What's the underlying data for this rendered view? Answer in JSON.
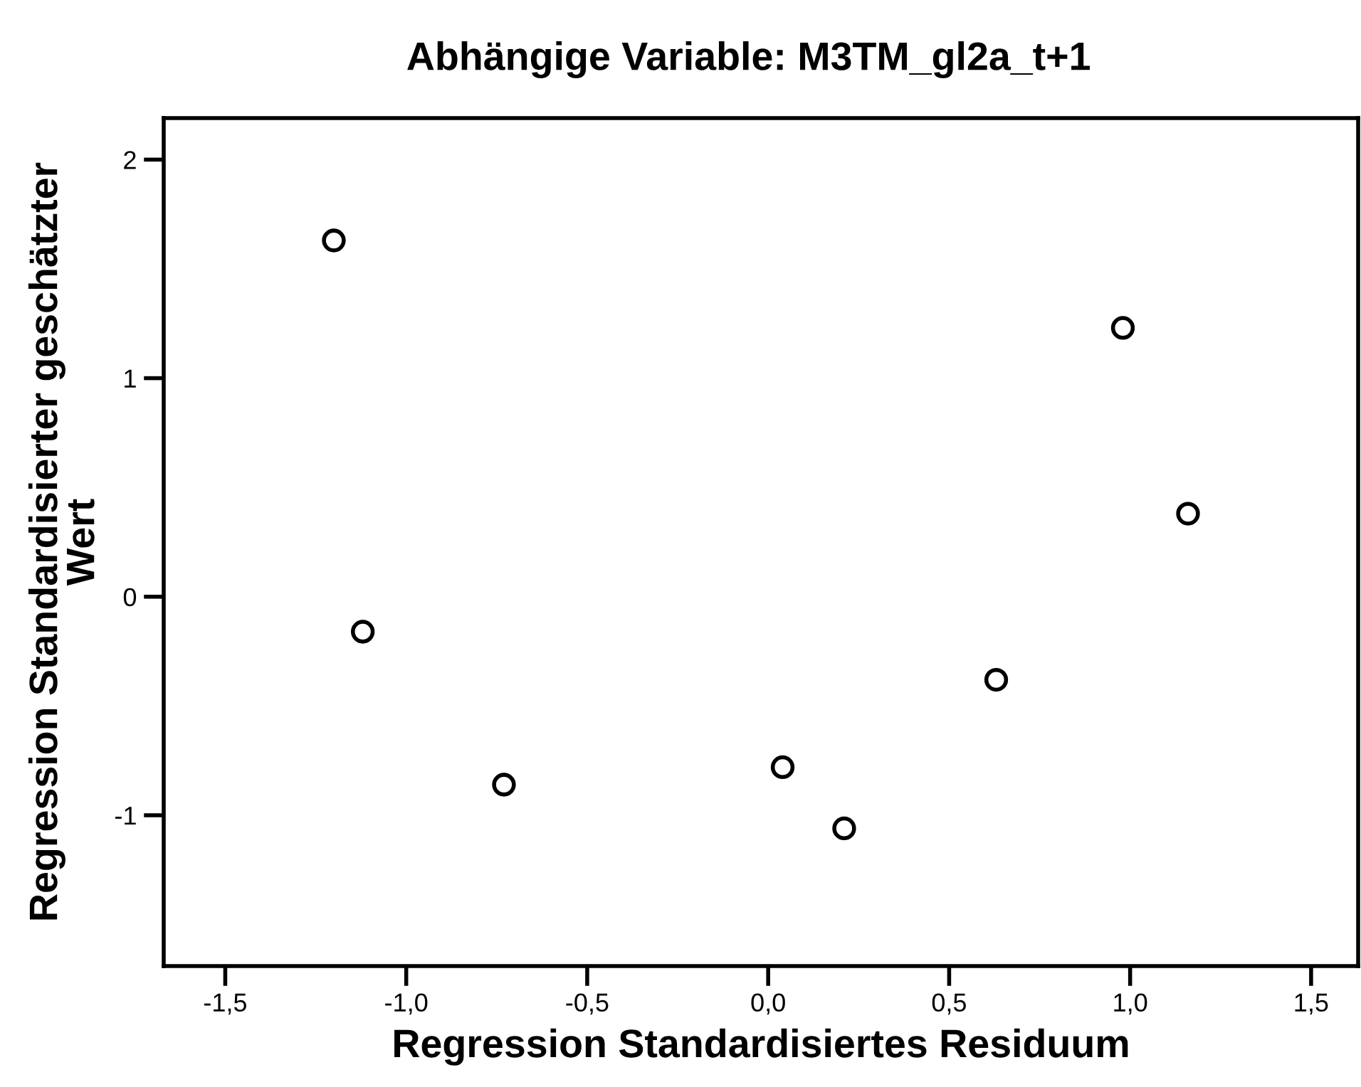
{
  "chart_data": {
    "type": "scatter",
    "title": "Abhängige Variable: M3TM_gl2a_t+1",
    "xlabel": "Regression Standardisiertes Residuum",
    "ylabel": "Regression Standardisierter geschätzter\nWert",
    "x": [
      -1.2,
      -1.12,
      -0.73,
      0.04,
      0.21,
      0.63,
      0.98,
      1.16
    ],
    "values": [
      1.63,
      -0.16,
      -0.86,
      -0.78,
      -1.06,
      -0.38,
      1.23,
      0.38
    ],
    "color": "#000000",
    "marker": "circle",
    "xlim": [
      -1.67,
      1.63
    ],
    "ylim": [
      -1.69,
      2.19
    ],
    "xticks": [
      {
        "value": -1.5,
        "label": "-1,5"
      },
      {
        "value": -1.0,
        "label": "-1,0"
      },
      {
        "value": -0.5,
        "label": "-0,5"
      },
      {
        "value": 0.0,
        "label": "0,0"
      },
      {
        "value": 0.5,
        "label": "0,5"
      },
      {
        "value": 1.0,
        "label": "1,0"
      },
      {
        "value": 1.5,
        "label": "1,5"
      }
    ],
    "yticks": [
      -1,
      0,
      1,
      2
    ],
    "grid": false,
    "legend": false
  }
}
